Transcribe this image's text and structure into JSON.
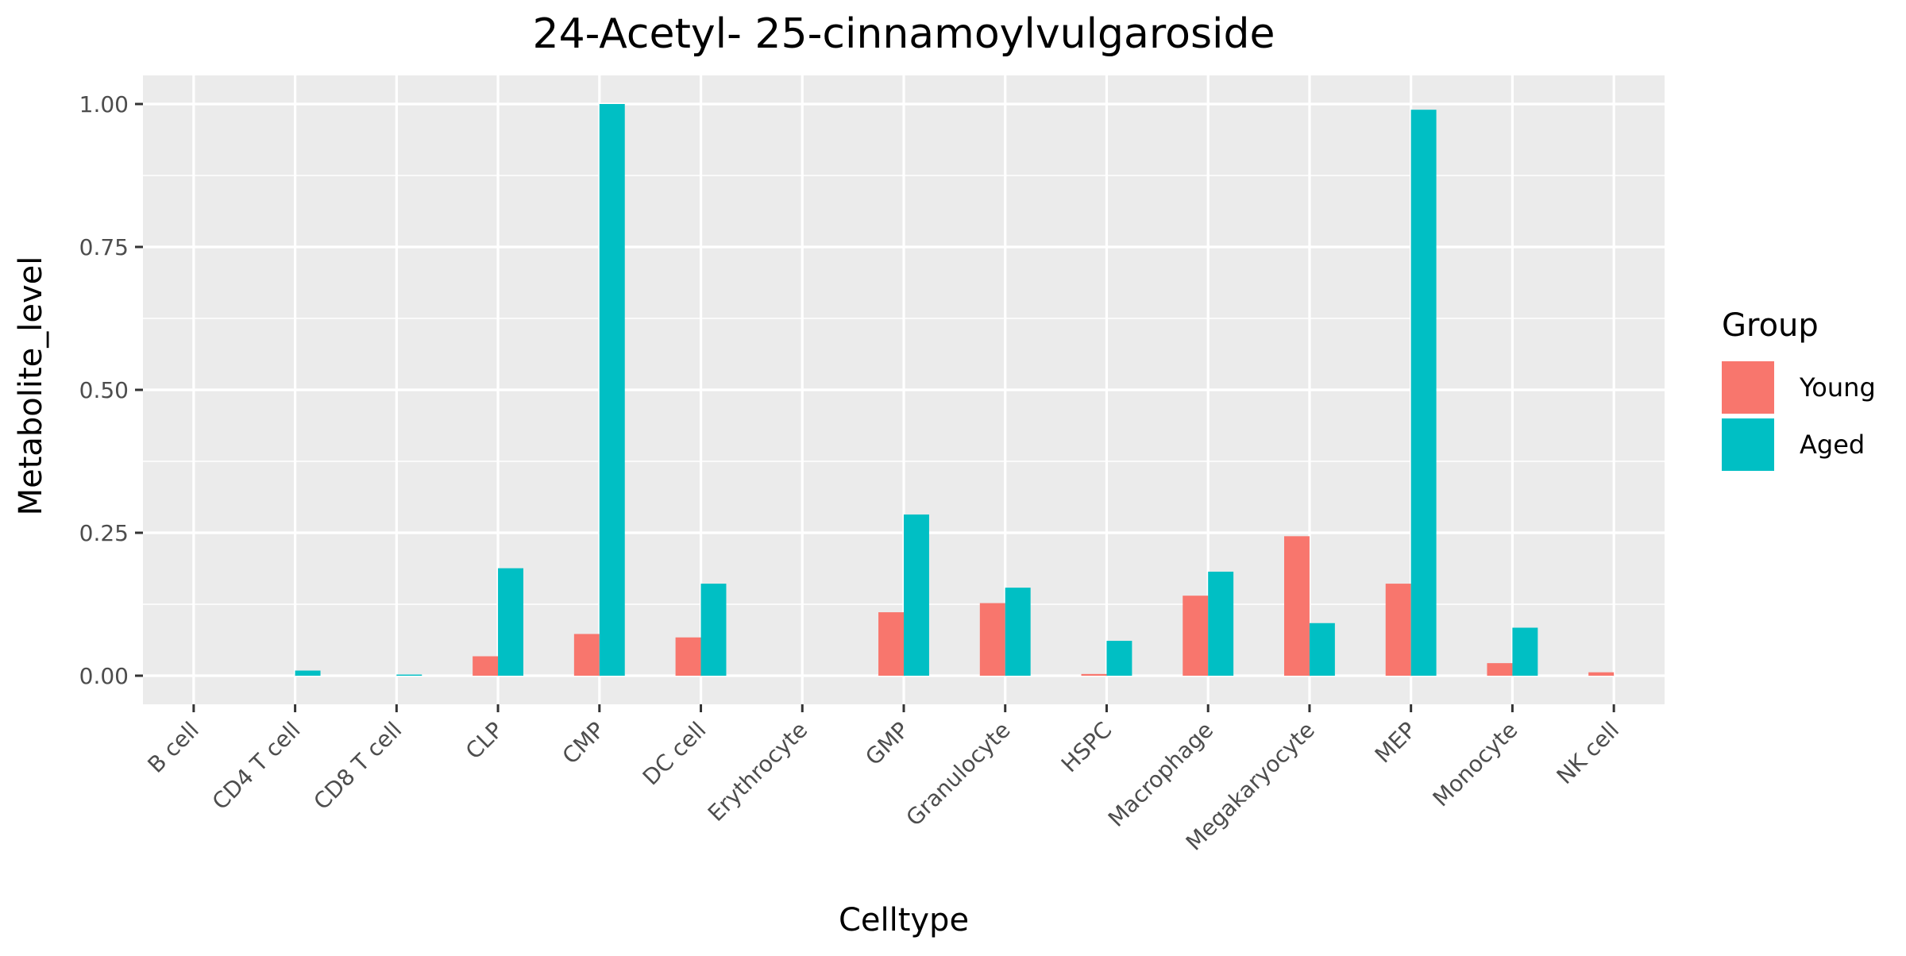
{
  "chart_data": {
    "type": "bar",
    "title": "24-Acetyl- 25-cinnamoylvulgaroside",
    "xlabel": "Celltype",
    "ylabel": "Metabolite_level",
    "categories": [
      "B cell",
      "CD4 T cell",
      "CD8 T cell",
      "CLP",
      "CMP",
      "DC cell",
      "Erythrocyte",
      "GMP",
      "Granulocyte",
      "HSPC",
      "Macrophage",
      "Megakaryocyte",
      "MEP",
      "Monocyte",
      "NK cell"
    ],
    "series": [
      {
        "name": "Young",
        "color": "#F8766D",
        "values": [
          0,
          0,
          0,
          0.034,
          0.073,
          0.067,
          0,
          0.111,
          0.127,
          0.003,
          0.14,
          0.244,
          0.161,
          0.022,
          0.006
        ]
      },
      {
        "name": "Aged",
        "color": "#00BFC4",
        "values": [
          0,
          0.009,
          0.002,
          0.188,
          1.0,
          0.161,
          0,
          0.282,
          0.154,
          0.061,
          0.182,
          0.092,
          0.99,
          0.084,
          0
        ]
      }
    ],
    "ylim": [
      -0.05,
      1.05
    ],
    "yticks": [
      0,
      0.25,
      0.5,
      0.75,
      1.0
    ],
    "ytick_labels": [
      "0.00",
      "0.25",
      "0.50",
      "0.75",
      "1.00"
    ],
    "legend": {
      "title": "Group",
      "position": "right",
      "entries": [
        "Young",
        "Aged"
      ]
    },
    "grid": true,
    "panel_background": "#EBEBEB"
  }
}
